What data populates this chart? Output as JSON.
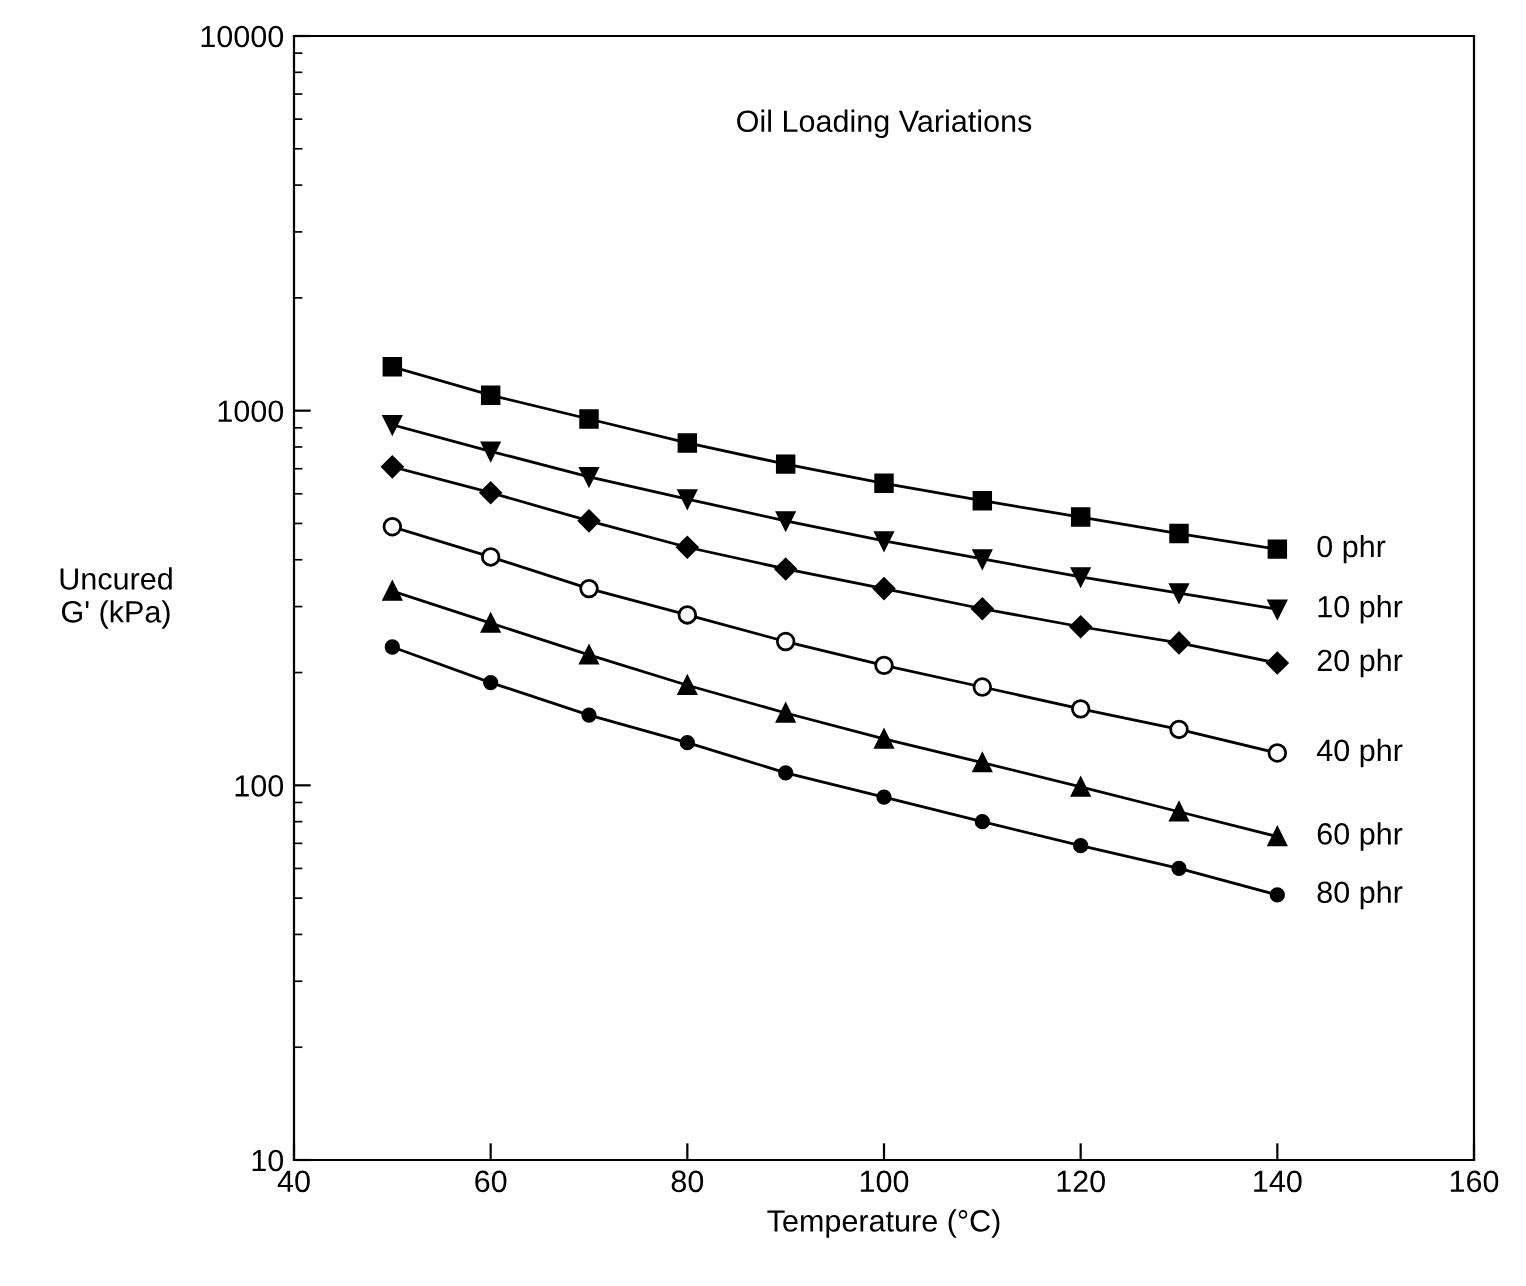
{
  "chart_data": {
    "type": "line",
    "title": "Oil Loading Variations",
    "xlabel": "Temperature (°C)",
    "ylabel": "Uncured\nG' (kPa)",
    "x": [
      50,
      60,
      70,
      80,
      90,
      100,
      110,
      120,
      130,
      140
    ],
    "series": [
      {
        "name": "0 phr",
        "color": "#000000",
        "marker": "square",
        "values": [
          1310,
          1100,
          950,
          820,
          720,
          640,
          575,
          520,
          470,
          427
        ]
      },
      {
        "name": "10 phr",
        "color": "#000000",
        "marker": "triangle_down",
        "values": [
          917,
          779,
          666,
          581,
          508,
          449,
          402,
          360,
          326,
          295
        ]
      },
      {
        "name": "20 phr",
        "color": "#000000",
        "marker": "diamond",
        "values": [
          708,
          604,
          508,
          432,
          378,
          335,
          296,
          265,
          240,
          212
        ]
      },
      {
        "name": "40 phr",
        "color": "#000000",
        "marker": "circle_open",
        "values": [
          490,
          407,
          335,
          285,
          242,
          209,
          183,
          160,
          141,
          122
        ]
      },
      {
        "name": "60 phr",
        "color": "#000000",
        "marker": "triangle",
        "values": [
          330,
          271,
          223,
          185,
          156,
          133,
          115,
          99,
          85,
          73
        ]
      },
      {
        "name": "80 phr",
        "color": "#000000",
        "marker": "circle",
        "values": [
          234,
          188,
          154,
          130,
          108,
          93,
          80,
          69,
          60,
          51
        ]
      }
    ],
    "log": "y",
    "xlim": [
      40,
      160
    ],
    "ylim": [
      10,
      10000
    ],
    "xticks": [
      40,
      60,
      80,
      100,
      120,
      140,
      160
    ],
    "yticks": [
      10,
      100,
      1000,
      10000
    ],
    "line_style": "solid",
    "grid": false,
    "legend": false
  }
}
